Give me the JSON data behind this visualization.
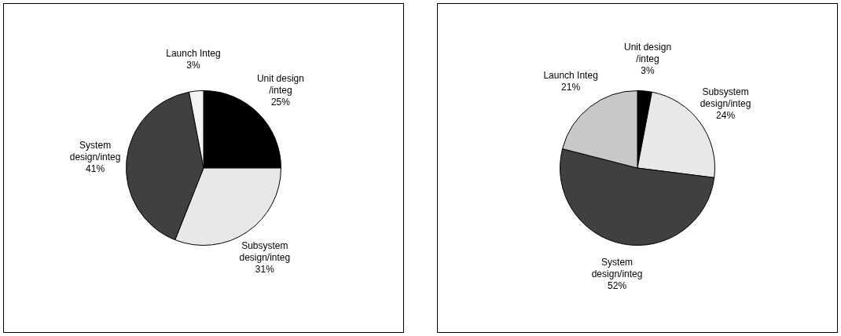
{
  "chart_data": [
    {
      "type": "pie",
      "categories": [
        "Unit design /integ",
        "Subsystem design/integ",
        "System design/integ",
        "Launch Integ"
      ],
      "values": [
        25,
        31,
        41,
        3
      ],
      "value_labels": [
        "25%",
        "31%",
        "41%",
        "3%"
      ],
      "colors": [
        "#000000",
        "#e8e8e8",
        "#404040",
        "#f4f4f4"
      ],
      "legend": false
    },
    {
      "type": "pie",
      "categories": [
        "Unit design /integ",
        "Subsystem design/integ",
        "System design/integ",
        "Launch Integ"
      ],
      "values": [
        3,
        24,
        52,
        21
      ],
      "value_labels": [
        "3%",
        "24%",
        "52%",
        "21%"
      ],
      "colors": [
        "#000000",
        "#e8e8e8",
        "#404040",
        "#c8c8c8"
      ],
      "legend": false
    }
  ]
}
